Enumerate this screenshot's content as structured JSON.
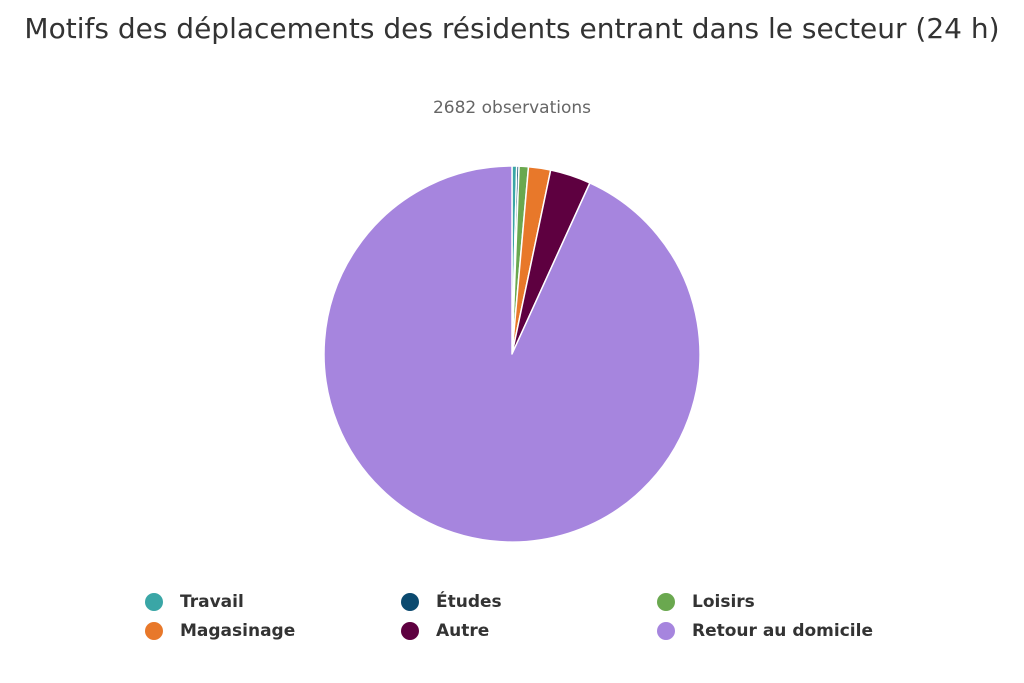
{
  "chart_data": {
    "type": "pie",
    "title": "Motifs des déplacements des résidents entrant dans le secteur (24 h)",
    "subtitle": "2682 observations",
    "total_observations": 2682,
    "unit": "%",
    "start_angle_deg": 0,
    "slices": [
      {
        "name": "Travail",
        "value": 0.4,
        "color": "#3aa6a6"
      },
      {
        "name": "Études",
        "value": 0.2,
        "color": "#0b4a6f"
      },
      {
        "name": "Loisirs",
        "value": 0.8,
        "color": "#6aa84f"
      },
      {
        "name": "Magasinage",
        "value": 1.9,
        "color": "#e8782a"
      },
      {
        "name": "Autre",
        "value": 3.5,
        "color": "#5e0040"
      },
      {
        "name": "Retour au domicile",
        "value": 93.2,
        "color": "#a685de"
      }
    ],
    "legend_position": "bottom"
  }
}
